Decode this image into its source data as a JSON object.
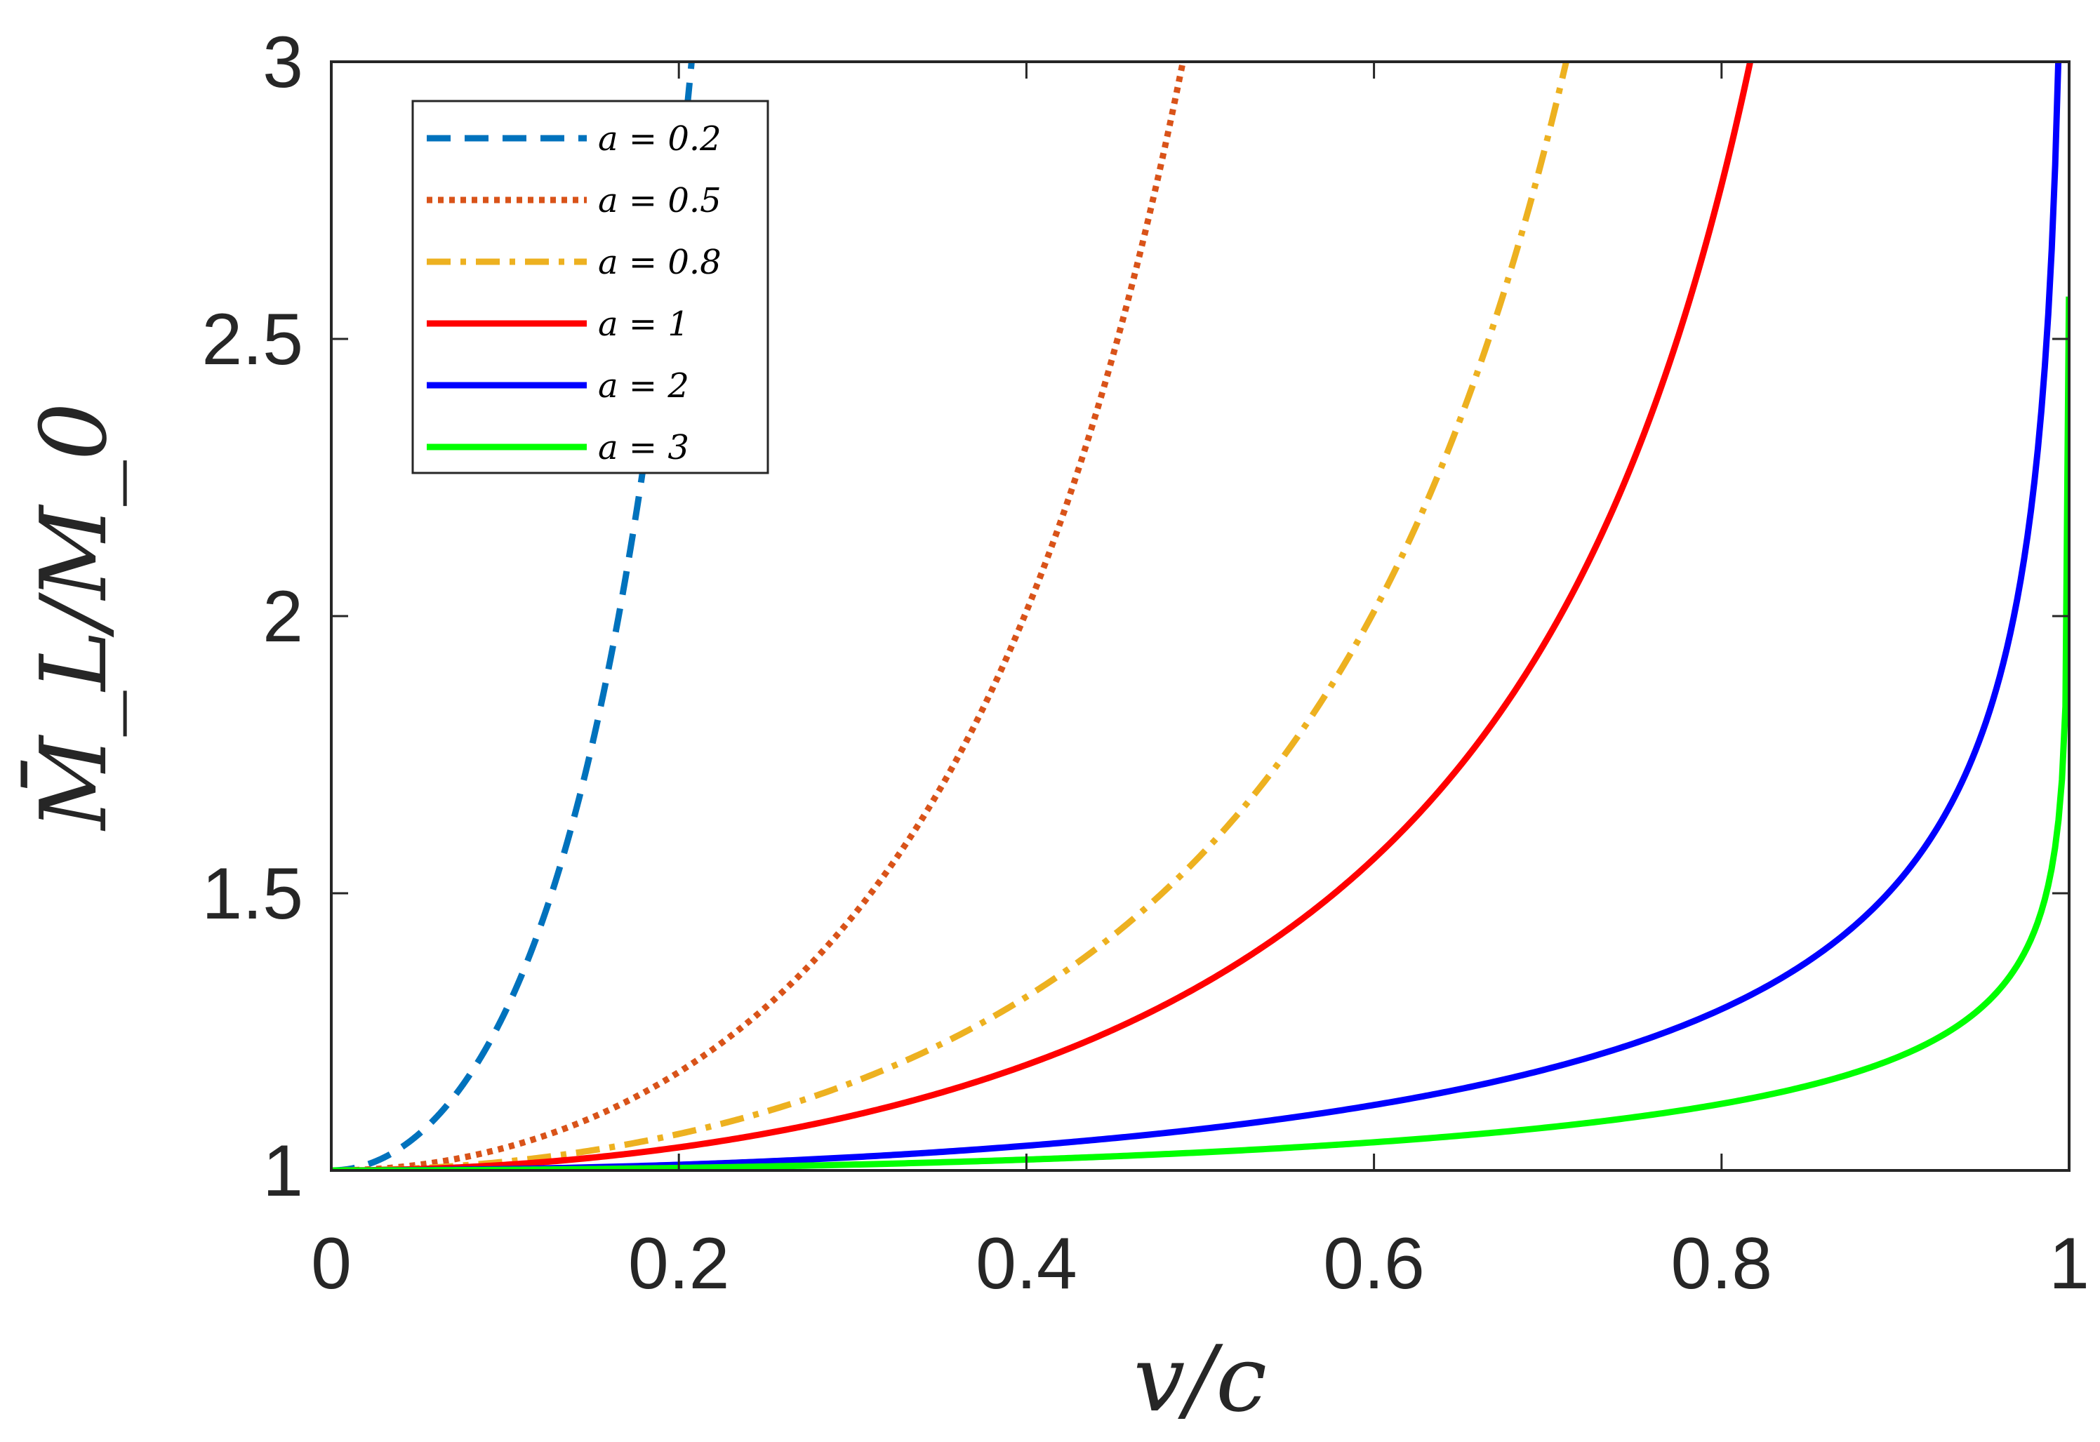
{
  "chart_data": {
    "type": "line",
    "xlabel": "v/c",
    "ylabel": "M̄_L/M_0",
    "xlim": [
      0,
      1
    ],
    "ylim": [
      1,
      3
    ],
    "grid": false,
    "legend_position": "top-left",
    "x_ticks": [
      "0",
      "0.2",
      "0.4",
      "0.6",
      "0.8",
      "1"
    ],
    "y_ticks": [
      "1",
      "1.5",
      "2",
      "2.5",
      "3"
    ],
    "series": [
      {
        "name": "a = 0.2",
        "a": 0.2,
        "color": "#0072BD",
        "style": "dashed"
      },
      {
        "name": "a = 0.5",
        "a": 0.5,
        "color": "#D95319",
        "style": "dotted"
      },
      {
        "name": "a = 0.8",
        "a": 0.8,
        "color": "#EDB120",
        "style": "dashdot"
      },
      {
        "name": "a = 1",
        "a": 1,
        "color": "#FF0000",
        "style": "solid"
      },
      {
        "name": "a = 2",
        "a": 2,
        "color": "#0000FF",
        "style": "solid"
      },
      {
        "name": "a = 3",
        "a": 3,
        "color": "#00FF00",
        "style": "solid"
      }
    ]
  }
}
